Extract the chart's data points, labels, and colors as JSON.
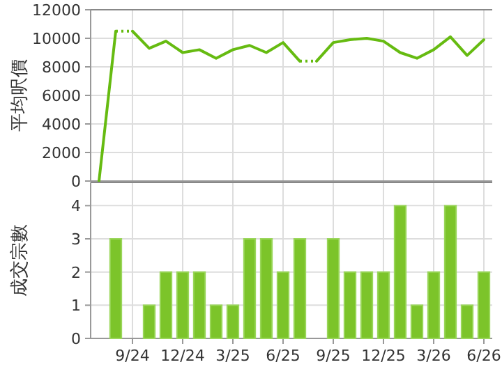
{
  "chart_data": [
    {
      "type": "line",
      "ylabel": "平均呎價",
      "tick_labels": "y",
      "grid": true,
      "marker": "none",
      "categories": [
        null,
        null,
        null,
        null,
        null,
        null,
        null,
        null,
        null,
        null,
        null,
        null,
        null,
        null,
        null,
        null,
        null,
        null,
        null,
        null,
        null,
        null,
        null,
        null
      ],
      "ylim": [
        0,
        12000
      ],
      "yticks": [
        0,
        2000,
        4000,
        6000,
        8000,
        10000,
        12000
      ],
      "series": [
        {
          "color": "#66bb11",
          "line_style": "solid",
          "values": [
            0,
            10500,
            null,
            null,
            null,
            null,
            null,
            null,
            null,
            null,
            null,
            null,
            null,
            null,
            null,
            null,
            null,
            null,
            null,
            null,
            null,
            null,
            null,
            null
          ]
        },
        {
          "color": "#66bb11",
          "line_style": "dotted",
          "values": [
            null,
            10500,
            10500,
            null,
            null,
            null,
            null,
            null,
            null,
            null,
            null,
            null,
            null,
            null,
            null,
            null,
            null,
            null,
            null,
            null,
            null,
            null,
            null,
            null
          ]
        },
        {
          "color": "#66bb11",
          "line_style": "solid",
          "values": [
            null,
            null,
            10500,
            9300,
            9800,
            9000,
            9200,
            8600,
            9200,
            9500,
            9000,
            9700,
            8400,
            null,
            null,
            null,
            null,
            null,
            null,
            null,
            null,
            null,
            null,
            null
          ]
        },
        {
          "color": "#66bb11",
          "line_style": "dotted",
          "values": [
            null,
            null,
            null,
            null,
            null,
            null,
            null,
            null,
            null,
            null,
            null,
            null,
            8400,
            8400,
            null,
            null,
            null,
            null,
            null,
            null,
            null,
            null,
            null,
            null
          ]
        },
        {
          "color": "#66bb11",
          "line_style": "solid",
          "values": [
            null,
            null,
            null,
            null,
            null,
            null,
            null,
            null,
            null,
            null,
            null,
            null,
            null,
            8400,
            9700,
            9900,
            10000,
            9800,
            9000,
            8600,
            9200,
            10100,
            8800,
            9900
          ]
        }
      ]
    },
    {
      "type": "bar",
      "ylabel": "成交宗數",
      "grid": true,
      "categories": [
        null,
        null,
        "9/24",
        null,
        null,
        "12/24",
        null,
        null,
        "3/25",
        null,
        null,
        "6/25",
        null,
        null,
        "9/25",
        null,
        null,
        "12/25",
        null,
        null,
        "3/26",
        null,
        null,
        "6/26"
      ],
      "ylim": [
        0,
        4.7
      ],
      "yticks": [
        0,
        1,
        2,
        3,
        4
      ],
      "series": [
        {
          "color": "#7cc42a",
          "values": [
            0,
            3,
            0,
            1,
            2,
            2,
            2,
            1,
            1,
            3,
            3,
            2,
            3,
            0,
            3,
            2,
            2,
            2,
            4,
            1,
            2,
            4,
            1,
            2
          ]
        }
      ]
    }
  ]
}
